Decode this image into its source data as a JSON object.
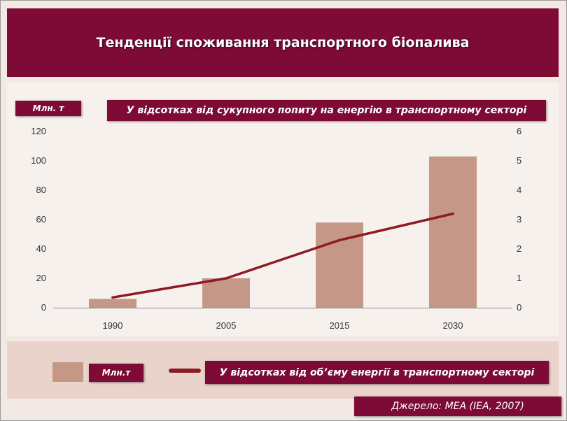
{
  "header": {
    "title": "Тенденції споживання транспортного біопалива"
  },
  "labels": {
    "unit_left": "Млн. т",
    "unit_right": "У відсотках від сукупного попиту на енергію в транспортному секторі"
  },
  "legend": {
    "bar_label": "Млн.т",
    "line_label": "У відсотках від об’єму енергії в транспортному секторі"
  },
  "source": {
    "text": "Джерело: МЕА (IEA, 2007)"
  },
  "chart_data": {
    "type": "bar",
    "categories": [
      "1990",
      "2005",
      "2015",
      "2030"
    ],
    "series": [
      {
        "name": "Млн.т",
        "type": "bar",
        "axis": "left",
        "values": [
          6,
          20,
          58,
          103
        ],
        "color": "#c49787"
      },
      {
        "name": "У відсотках від об’єму енергії в транспортному секторі",
        "type": "line",
        "axis": "right",
        "values": [
          0.35,
          1.0,
          2.3,
          3.2
        ],
        "color": "#8e1a22"
      }
    ],
    "ylim_left": [
      0,
      120
    ],
    "yticks_left": [
      "0",
      "20",
      "40",
      "60",
      "80",
      "100",
      "120"
    ],
    "ylim_right": [
      0,
      6
    ],
    "yticks_right": [
      "0",
      "1",
      "2",
      "3",
      "4",
      "5",
      "6"
    ],
    "legend_position": "bottom"
  }
}
